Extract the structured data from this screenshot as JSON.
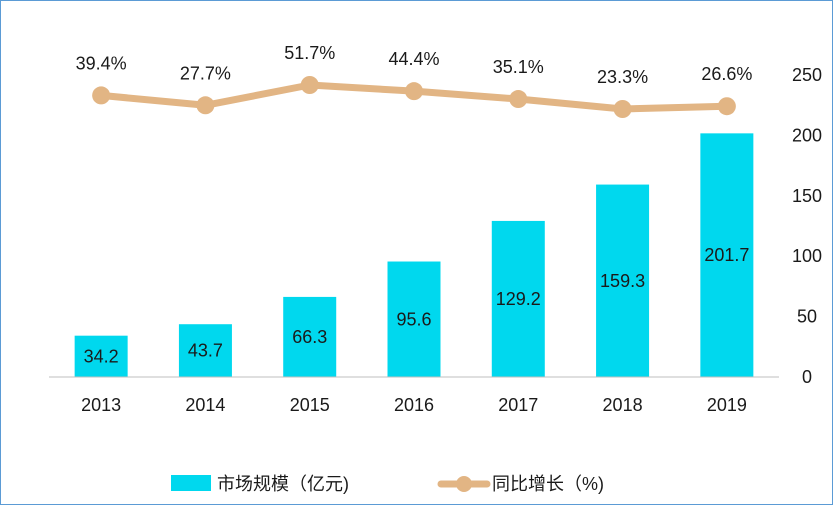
{
  "chart_data": {
    "type": "bar",
    "categories": [
      "2013",
      "2014",
      "2015",
      "2016",
      "2017",
      "2018",
      "2019"
    ],
    "series": [
      {
        "name": "市场规模（亿元)",
        "type": "bar",
        "axis": "right",
        "color": "#00d8ee",
        "values": [
          34.2,
          43.7,
          66.3,
          95.6,
          129.2,
          159.3,
          201.7
        ]
      },
      {
        "name": "同比增长（%)",
        "type": "line",
        "color": "#e2b584",
        "values": [
          39.4,
          27.7,
          51.7,
          44.4,
          35.1,
          23.3,
          26.6
        ],
        "labels": [
          "39.4%",
          "27.7%",
          "51.7%",
          "44.4%",
          "35.1%",
          "23.3%",
          "26.6%"
        ]
      }
    ],
    "right_axis": {
      "ylim": [
        0,
        250
      ],
      "ticks": [
        0,
        50,
        100,
        150,
        200,
        250
      ]
    },
    "grid": false,
    "legend_position": "bottom"
  }
}
